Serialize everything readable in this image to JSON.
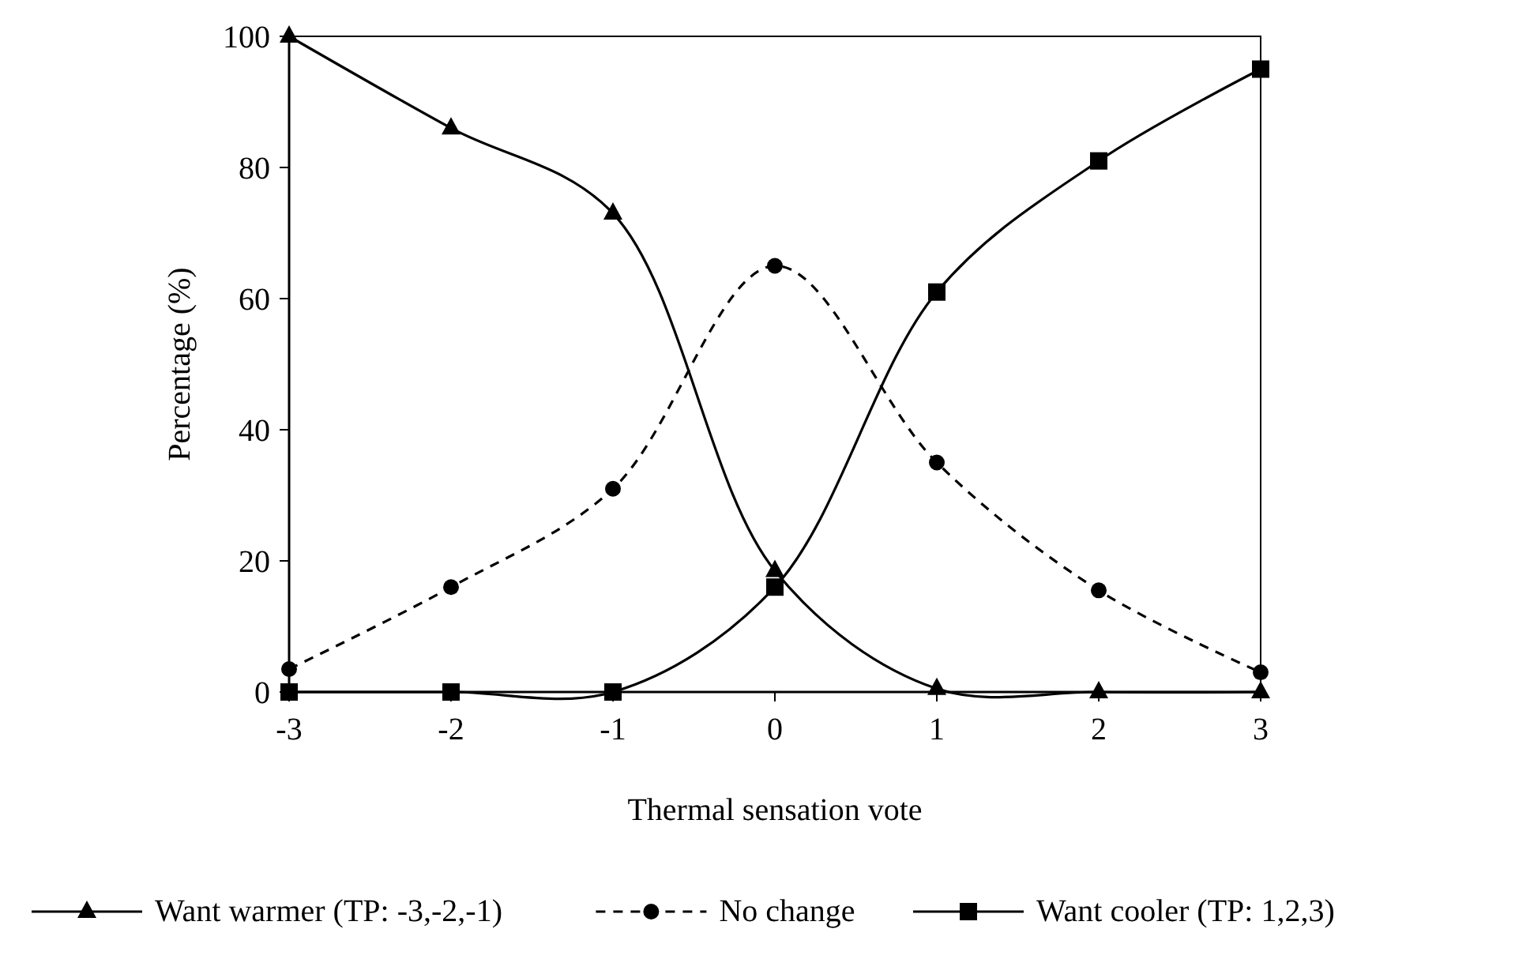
{
  "chart_data": {
    "type": "line",
    "xlabel": "Thermal sensation vote",
    "ylabel": "Percentage (%)",
    "x": [
      -3,
      -2,
      -1,
      0,
      1,
      2,
      3
    ],
    "xlim": [
      -3,
      3
    ],
    "xticks": [
      -3,
      -2,
      -1,
      0,
      1,
      2,
      3
    ],
    "ylim": [
      0,
      100
    ],
    "yticks": [
      0,
      20,
      40,
      60,
      80,
      100
    ],
    "grid": false,
    "legend": "bottom",
    "series": [
      {
        "name": "Want warmer (TP: -3,-2,-1)",
        "color": "#000000",
        "marker": "triangle",
        "line_style": "solid",
        "values": [
          100,
          86,
          73,
          18.5,
          0.5,
          0,
          0
        ]
      },
      {
        "name": "No change",
        "color": "#000000",
        "marker": "circle",
        "line_style": "dashed",
        "values": [
          3.5,
          16,
          31,
          65,
          35,
          15.5,
          3
        ]
      },
      {
        "name": "Want cooler (TP: 1,2,3)",
        "color": "#000000",
        "marker": "square",
        "line_style": "solid",
        "values": [
          0,
          0,
          0,
          16,
          61,
          81,
          95
        ]
      }
    ]
  }
}
